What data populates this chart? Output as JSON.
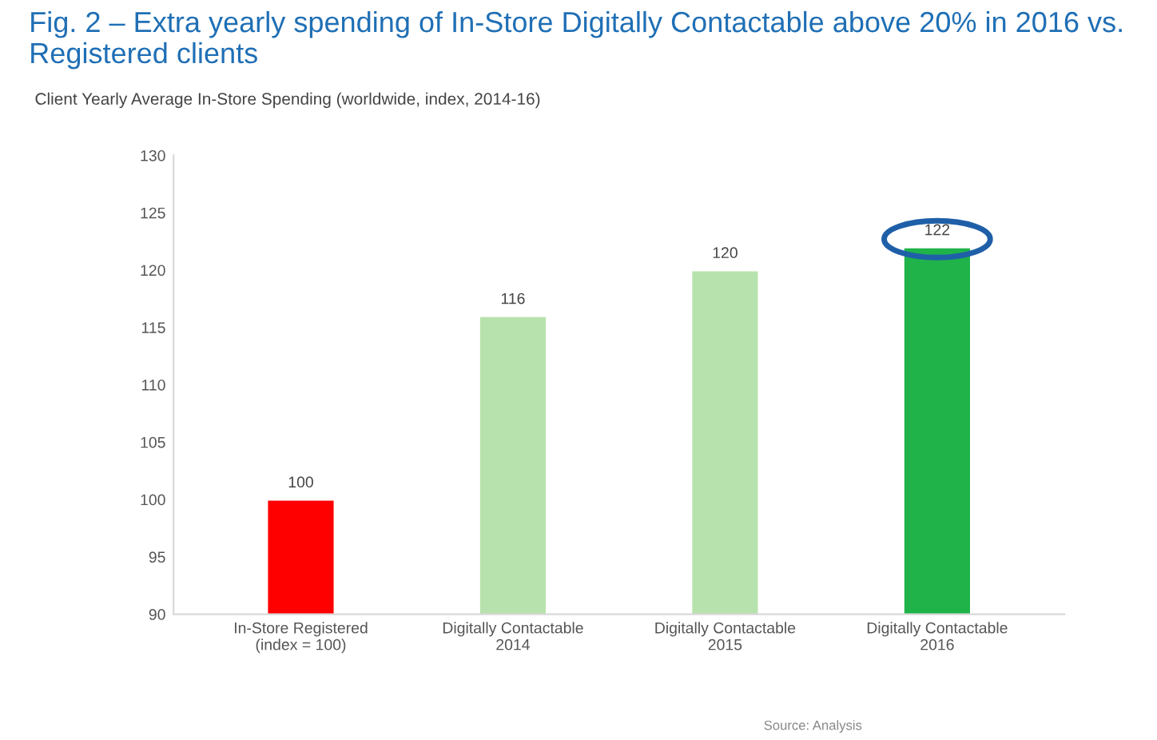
{
  "chart_data": {
    "type": "bar",
    "title": "Fig. 2 – Extra yearly spending of In-Store Digitally Contactable above 20% in 2016 vs. Registered clients",
    "subtitle": "Client Yearly Average In-Store Spending (worldwide, index, 2014-16)",
    "categories": [
      "In-Store Registered\n(index = 100)",
      "Digitally Contactable\n2014",
      "Digitally Contactable\n2015",
      "Digitally Contactable\n2016"
    ],
    "values": [
      100,
      116,
      120,
      122
    ],
    "colors": [
      "#ff0000",
      "#b8e2ad",
      "#b8e2ad",
      "#1fb34a"
    ],
    "ylim": [
      90,
      130
    ],
    "yticks": [
      90,
      95,
      100,
      105,
      110,
      115,
      120,
      125,
      130
    ],
    "data_labels": true,
    "grid": false,
    "legend": false,
    "annotations": [
      "Source: Analysis"
    ]
  }
}
